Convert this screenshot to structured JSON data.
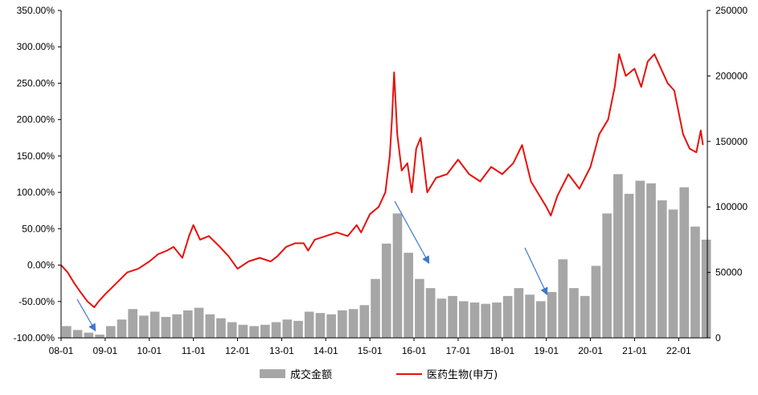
{
  "chart_data": {
    "type": "bar+line",
    "x_tick_labels": [
      "08-01",
      "09-01",
      "10-01",
      "11-01",
      "12-01",
      "13-01",
      "14-01",
      "15-01",
      "16-01",
      "17-01",
      "18-01",
      "19-01",
      "20-01",
      "21-01",
      "22-01"
    ],
    "y_left": {
      "ticks": [
        "-100.00%",
        "-50.00%",
        "0.00%",
        "50.00%",
        "100.00%",
        "150.00%",
        "200.00%",
        "250.00%",
        "300.00%",
        "350.00%"
      ],
      "range": [
        -100,
        350
      ],
      "unit": "%"
    },
    "y_right": {
      "ticks": [
        "0",
        "50000",
        "100000",
        "150000",
        "200000",
        "250000"
      ],
      "range": [
        0,
        250000
      ]
    },
    "series": [
      {
        "name": "成交金额",
        "type": "bar",
        "axis": "right",
        "color": "#a6a6a6",
        "x": [
          2008.0,
          2008.25,
          2008.5,
          2008.75,
          2009.0,
          2009.25,
          2009.5,
          2009.75,
          2010.0,
          2010.25,
          2010.5,
          2010.75,
          2011.0,
          2011.25,
          2011.5,
          2011.75,
          2012.0,
          2012.25,
          2012.5,
          2012.75,
          2013.0,
          2013.25,
          2013.5,
          2013.75,
          2014.0,
          2014.25,
          2014.5,
          2014.75,
          2015.0,
          2015.25,
          2015.5,
          2015.75,
          2016.0,
          2016.25,
          2016.5,
          2016.75,
          2017.0,
          2017.25,
          2017.5,
          2017.75,
          2018.0,
          2018.25,
          2018.5,
          2018.75,
          2019.0,
          2019.25,
          2019.5,
          2019.75,
          2020.0,
          2020.25,
          2020.5,
          2020.75,
          2021.0,
          2021.25,
          2021.5,
          2021.75,
          2022.0,
          2022.25,
          2022.5
        ],
        "values": [
          9000,
          6000,
          4000,
          2500,
          9000,
          14000,
          22000,
          17000,
          20000,
          16000,
          18000,
          21000,
          23000,
          18000,
          15000,
          12000,
          10000,
          9000,
          10000,
          12000,
          14000,
          13000,
          20000,
          19000,
          18000,
          21000,
          22000,
          25000,
          45000,
          72000,
          95000,
          65000,
          45000,
          38000,
          30000,
          32000,
          28000,
          27000,
          26000,
          27000,
          32000,
          38000,
          33000,
          28000,
          35000,
          60000,
          38000,
          32000,
          55000,
          95000,
          125000,
          110000,
          120000,
          118000,
          105000,
          98000,
          115000,
          85000,
          75000
        ]
      },
      {
        "name": "医药生物(申万)",
        "type": "line",
        "axis": "left",
        "color": "#e8100b",
        "x": [
          2008.0,
          2008.15,
          2008.3,
          2008.45,
          2008.6,
          2008.75,
          2008.85,
          2009.0,
          2009.25,
          2009.5,
          2009.75,
          2010.0,
          2010.2,
          2010.4,
          2010.55,
          2010.75,
          2010.9,
          2011.0,
          2011.15,
          2011.35,
          2011.6,
          2011.8,
          2012.0,
          2012.25,
          2012.5,
          2012.75,
          2012.9,
          2013.1,
          2013.3,
          2013.5,
          2013.6,
          2013.75,
          2014.0,
          2014.25,
          2014.5,
          2014.7,
          2014.8,
          2015.0,
          2015.2,
          2015.35,
          2015.45,
          2015.5,
          2015.55,
          2015.62,
          2015.72,
          2015.85,
          2015.95,
          2016.05,
          2016.15,
          2016.3,
          2016.5,
          2016.75,
          2017.0,
          2017.25,
          2017.5,
          2017.75,
          2018.0,
          2018.25,
          2018.45,
          2018.65,
          2018.85,
          2019.0,
          2019.1,
          2019.25,
          2019.5,
          2019.75,
          2020.0,
          2020.2,
          2020.4,
          2020.55,
          2020.65,
          2020.8,
          2021.0,
          2021.15,
          2021.3,
          2021.45,
          2021.6,
          2021.75,
          2021.9,
          2022.0,
          2022.1,
          2022.25,
          2022.4,
          2022.5,
          2022.55
        ],
        "values": [
          0,
          -10,
          -25,
          -38,
          -50,
          -58,
          -50,
          -40,
          -25,
          -10,
          -5,
          5,
          15,
          20,
          25,
          10,
          40,
          55,
          35,
          40,
          25,
          12,
          -5,
          5,
          10,
          5,
          12,
          25,
          30,
          30,
          20,
          35,
          40,
          45,
          40,
          55,
          45,
          70,
          80,
          100,
          150,
          200,
          265,
          180,
          130,
          140,
          100,
          160,
          175,
          100,
          120,
          125,
          145,
          125,
          115,
          135,
          125,
          140,
          165,
          115,
          95,
          80,
          68,
          95,
          125,
          105,
          135,
          180,
          200,
          245,
          290,
          260,
          270,
          245,
          280,
          290,
          270,
          250,
          240,
          210,
          180,
          160,
          155,
          185,
          165
        ]
      }
    ]
  },
  "legend": {
    "bar_label": "成交金额",
    "line_label": "医药生物(申万)"
  }
}
